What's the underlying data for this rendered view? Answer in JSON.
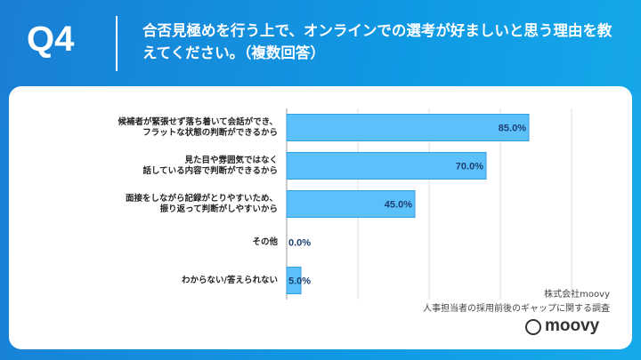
{
  "header": {
    "label": "Q4",
    "title": "合否見極めを行う上で、オンラインでの選考が好ましいと思う理由を教えてください。（複数回答）"
  },
  "chart_data": {
    "type": "bar",
    "orientation": "horizontal",
    "categories": [
      "候補者が緊張せず落ち着いて会話ができ、\nフラットな状態の判断ができるから",
      "見た目や雰囲気ではなく\n話している内容で判断ができるから",
      "面接をしながら記録がとりやすいため、\n振り返って判断がしやすいから",
      "その他",
      "わからない/答えられない"
    ],
    "values": [
      85.0,
      70.0,
      45.0,
      0.0,
      5.0
    ],
    "value_labels": [
      "85.0%",
      "70.0%",
      "45.0%",
      "0.0%",
      "5.0%"
    ],
    "color": "#5cc0fa",
    "border_color": "#2f9fe6",
    "label_color": "#1c3f73",
    "xlim": [
      0,
      100
    ],
    "xticks": [
      0,
      25,
      50,
      75,
      100
    ],
    "grid": true
  },
  "source": {
    "company": "株式会社moovy",
    "survey": "人事担当者の採用前後のギャップに関する調査"
  },
  "logo": "moovy"
}
